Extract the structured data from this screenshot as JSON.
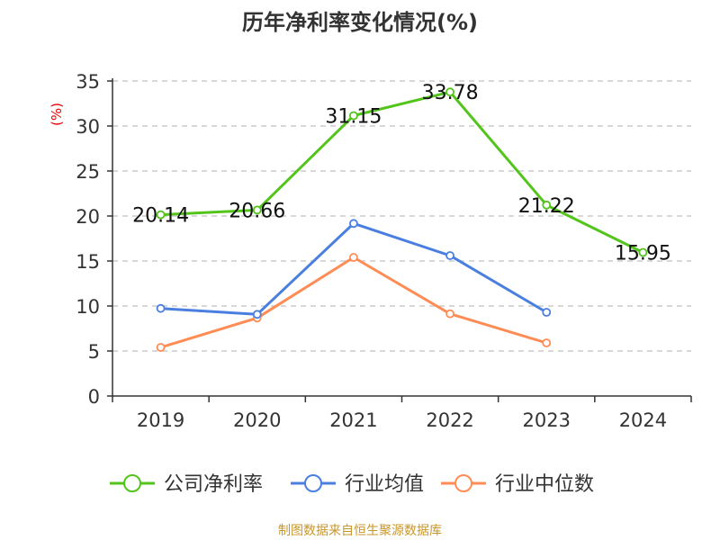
{
  "chart_data": {
    "type": "line",
    "title": "历年净利率变化情况(%)",
    "ylabel": "(%)",
    "xlabel": "",
    "ylim": [
      0,
      35
    ],
    "yticks": [
      0,
      5,
      10,
      15,
      20,
      25,
      30,
      35
    ],
    "grid": true,
    "legend_position": "bottom",
    "categories": [
      "2019",
      "2020",
      "2021",
      "2022",
      "2023",
      "2024"
    ],
    "series": [
      {
        "name": "公司净利率",
        "color": "#52c41a",
        "labels": true,
        "values": [
          20.14,
          20.66,
          31.15,
          33.78,
          21.22,
          15.95
        ]
      },
      {
        "name": "行业均值",
        "color": "#4a7fe0",
        "labels": false,
        "values": [
          9.73,
          9.07,
          19.17,
          15.6,
          9.3,
          null
        ]
      },
      {
        "name": "行业中位数",
        "color": "#ff8c55",
        "labels": false,
        "values": [
          5.4,
          8.67,
          15.4,
          9.13,
          5.9,
          null
        ]
      }
    ],
    "source": "制图数据来自恒生聚源数据库"
  }
}
